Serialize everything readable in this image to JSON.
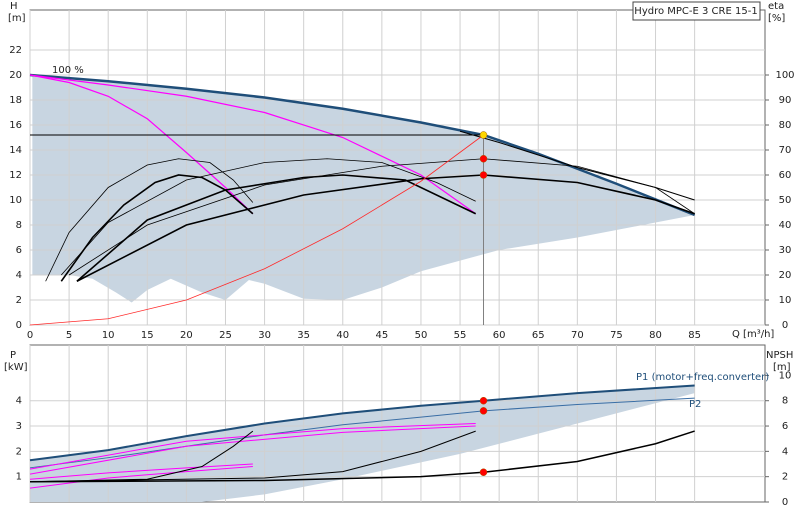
{
  "chart_data": [
    {
      "type": "line",
      "title": "Hydro MPC-E 3 CRE 15-1",
      "ylabel": "H",
      "yunit": "[m]",
      "y2label": "eta",
      "y2unit": "[%]",
      "xlabel": "Q [m³/h]",
      "annotation": "100 %",
      "xlim": [
        0,
        94
      ],
      "xticks": [
        0,
        5,
        10,
        15,
        20,
        25,
        30,
        35,
        40,
        45,
        50,
        55,
        60,
        65,
        70,
        75,
        80,
        85
      ],
      "ylim": [
        0,
        25.2
      ],
      "yticks": [
        0,
        2,
        4,
        6,
        8,
        10,
        12,
        14,
        16,
        18,
        20,
        22
      ],
      "y2lim": [
        0,
        126
      ],
      "y2ticks": [
        0,
        10,
        20,
        30,
        40,
        50,
        60,
        70,
        80,
        90,
        100
      ],
      "grid": true,
      "area": {
        "color": "#c8d5e1",
        "x": [
          0.3,
          10,
          20,
          30,
          40,
          50,
          58,
          65,
          75,
          85,
          80,
          70,
          60,
          50,
          45,
          40,
          35,
          30,
          28,
          25,
          22,
          18,
          15,
          13,
          11,
          8,
          5,
          0.3
        ],
        "values": [
          20,
          19.5,
          18.9,
          18.2,
          17.3,
          16.2,
          15.2,
          13.7,
          11.3,
          8.8,
          8.2,
          7,
          6,
          4.3,
          3,
          2,
          2.1,
          3.3,
          3.6,
          2,
          2.6,
          3.7,
          2.8,
          1.8,
          2.6,
          3.7,
          4,
          4
        ]
      },
      "series": [
        {
          "color": "#1f4e79",
          "x": [
            0,
            10,
            20,
            30,
            40,
            50,
            58,
            65,
            75,
            85
          ],
          "values": [
            20,
            19.5,
            18.9,
            18.2,
            17.3,
            16.2,
            15.2,
            13.7,
            11.3,
            8.8
          ]
        },
        {
          "color": "#000000",
          "x": [
            55,
            60,
            65,
            70,
            75,
            80,
            85
          ],
          "values": [
            15.5,
            14.6,
            13.6,
            12.6,
            11.8,
            11,
            10
          ]
        },
        {
          "color": "#ff00ff",
          "x": [
            0,
            5,
            10,
            15,
            20,
            25,
            28.5
          ],
          "values": [
            20,
            19.4,
            18.3,
            16.5,
            13.8,
            11,
            8.9
          ]
        },
        {
          "color": "#ff00ff",
          "x": [
            0,
            10,
            20,
            30,
            40,
            50,
            57
          ],
          "values": [
            20,
            19.2,
            18.3,
            17,
            15,
            12,
            8.9
          ]
        },
        {
          "color": "#000000",
          "axis": "y2",
          "x": [
            2,
            5,
            10,
            15,
            19,
            23,
            26,
            28.5
          ],
          "values": [
            17.5,
            37,
            55,
            64,
            66.5,
            65,
            58,
            49
          ]
        },
        {
          "color": "#000000",
          "axis": "y2",
          "x": [
            4,
            8,
            12,
            16,
            19,
            22,
            25,
            28.5
          ],
          "values": [
            17.5,
            35,
            48,
            57,
            60,
            59,
            54,
            44.5
          ]
        },
        {
          "color": "#000000",
          "axis": "y2",
          "x": [
            4,
            10,
            20,
            30,
            38,
            45,
            52,
            57
          ],
          "values": [
            20,
            41,
            58,
            65,
            66.5,
            65,
            57,
            49.5
          ]
        },
        {
          "color": "#000000",
          "axis": "y2",
          "x": [
            6,
            15,
            25,
            35,
            40,
            48,
            57
          ],
          "values": [
            17.5,
            42,
            54,
            59,
            60,
            58,
            44.5
          ]
        },
        {
          "color": "#000000",
          "axis": "y2",
          "x": [
            5,
            15,
            30,
            45,
            58,
            70,
            80,
            85
          ],
          "values": [
            20,
            40,
            56,
            63.5,
            66.5,
            63.5,
            55,
            44.5
          ]
        },
        {
          "color": "#000000",
          "axis": "y2",
          "x": [
            6,
            20,
            35,
            50,
            58,
            70,
            80,
            85
          ],
          "values": [
            17.5,
            40,
            52,
            58.5,
            60,
            57,
            50,
            44.5
          ]
        },
        {
          "color": "#ff2a2a",
          "x": [
            0,
            10,
            20,
            30,
            40,
            50,
            58
          ],
          "values": [
            0,
            0.5,
            2,
            4.5,
            7.7,
            11.5,
            15.2
          ]
        },
        {
          "color": "#000000",
          "x": [
            0,
            58
          ],
          "values": [
            15.2,
            15.2
          ]
        },
        {
          "color": "#808080",
          "x": [
            58,
            58
          ],
          "values": [
            0,
            15.2
          ]
        }
      ],
      "markers": [
        {
          "color": "#ffd700",
          "x": 58,
          "value": 15.2
        },
        {
          "color": "#ff0000",
          "axis": "y2",
          "x": 58,
          "value": 66.5
        },
        {
          "color": "#ff0000",
          "axis": "y2",
          "x": 58,
          "value": 60
        }
      ]
    },
    {
      "type": "line",
      "ylabel": "P",
      "yunit": "[kW]",
      "y2label": "NPSH",
      "y2unit": "[m]",
      "xlim": [
        0,
        94
      ],
      "ylim": [
        0,
        6.2
      ],
      "yticks": [
        1,
        2,
        3,
        4
      ],
      "y2lim": [
        0,
        12.4
      ],
      "y2ticks": [
        0,
        2,
        4,
        6,
        8,
        10
      ],
      "grid": true,
      "area": {
        "color": "#c8d5e1",
        "x": [
          0,
          10,
          20,
          30,
          40,
          50,
          58,
          70,
          85,
          85,
          70,
          55,
          40,
          30,
          22,
          0
        ],
        "values": [
          1.65,
          2.05,
          2.6,
          3.1,
          3.5,
          3.8,
          4,
          4.3,
          4.6,
          4.3,
          3.1,
          1.9,
          0.9,
          0.3,
          0,
          0
        ]
      },
      "series": [
        {
          "name": "P1 (motor+freq.converter)",
          "color": "#1f4e79",
          "x": [
            0,
            10,
            20,
            30,
            40,
            50,
            58,
            70,
            85
          ],
          "values": [
            1.65,
            2.05,
            2.6,
            3.1,
            3.5,
            3.8,
            4,
            4.3,
            4.6
          ]
        },
        {
          "name": "P2",
          "color": "#3a6ea5",
          "x": [
            0,
            10,
            20,
            30,
            40,
            50,
            58,
            70,
            85
          ],
          "values": [
            1.35,
            1.75,
            2.2,
            2.65,
            3.05,
            3.35,
            3.6,
            3.85,
            4.1
          ]
        },
        {
          "color": "#ff00ff",
          "x": [
            0,
            10,
            20,
            28.5
          ],
          "values": [
            0.9,
            1.15,
            1.35,
            1.5
          ]
        },
        {
          "color": "#ff00ff",
          "x": [
            0,
            10,
            20,
            28.5
          ],
          "values": [
            0.55,
            0.95,
            1.2,
            1.4
          ]
        },
        {
          "color": "#ff00ff",
          "x": [
            0,
            20,
            40,
            57
          ],
          "values": [
            1.1,
            2.2,
            2.75,
            3
          ]
        },
        {
          "color": "#ff00ff",
          "x": [
            0,
            20,
            40,
            57
          ],
          "values": [
            1.3,
            2.4,
            2.9,
            3.1
          ]
        },
        {
          "color": "#000000",
          "x": [
            0,
            15,
            22,
            26,
            28.5
          ],
          "values": [
            0.8,
            0.9,
            1.4,
            2.2,
            2.8
          ]
        },
        {
          "color": "#000000",
          "x": [
            0,
            30,
            40,
            50,
            57
          ],
          "values": [
            0.8,
            0.95,
            1.2,
            2,
            2.8
          ]
        },
        {
          "color": "#000000",
          "axis": "y2",
          "x": [
            0,
            30,
            50,
            58,
            70,
            80,
            85
          ],
          "values": [
            1.6,
            1.7,
            2,
            2.35,
            3.2,
            4.6,
            5.6
          ]
        }
      ],
      "markers": [
        {
          "color": "#ff0000",
          "x": 58,
          "value": 4
        },
        {
          "color": "#ff0000",
          "x": 58,
          "value": 3.6
        },
        {
          "color": "#ff0000",
          "axis": "y2",
          "x": 58,
          "value": 2.35
        }
      ]
    }
  ]
}
